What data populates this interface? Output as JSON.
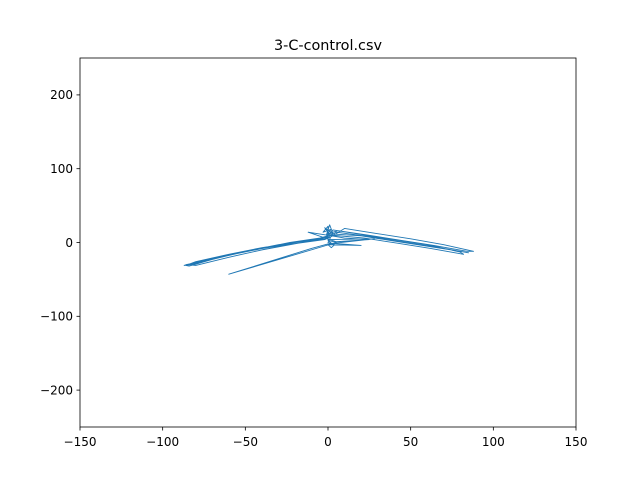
{
  "chart_data": {
    "type": "line",
    "title": "3-C-control.csv",
    "xlabel": "",
    "ylabel": "",
    "xlim": [
      -150,
      150
    ],
    "ylim": [
      -250,
      250
    ],
    "xticks": [
      -150,
      -100,
      -50,
      0,
      50,
      100,
      150
    ],
    "yticks": [
      -200,
      -100,
      0,
      100,
      200
    ],
    "xtick_labels": [
      "−150",
      "−100",
      "−50",
      "0",
      "50",
      "100",
      "150"
    ],
    "ytick_labels": [
      "−200",
      "−100",
      "0",
      "100",
      "200"
    ],
    "grid": false,
    "line_color": "#1f77b4",
    "series": [
      {
        "name": "",
        "points": [
          [
            0,
            8
          ],
          [
            -2,
            5
          ],
          [
            -20,
            0
          ],
          [
            -40,
            -7
          ],
          [
            -60,
            -16
          ],
          [
            -80,
            -26
          ],
          [
            -86,
            -31
          ],
          [
            -84,
            -32
          ],
          [
            -70,
            -23
          ],
          [
            -50,
            -12
          ],
          [
            -30,
            -3
          ],
          [
            -10,
            4
          ],
          [
            1,
            8
          ],
          [
            -3,
            6
          ],
          [
            -25,
            -2
          ],
          [
            -45,
            -10
          ],
          [
            -65,
            -19
          ],
          [
            -82,
            -29
          ],
          [
            -87,
            -31
          ],
          [
            -83,
            -30
          ],
          [
            -63,
            -19
          ],
          [
            -43,
            -9
          ],
          [
            -23,
            0
          ],
          [
            -5,
            6
          ],
          [
            0,
            9
          ],
          [
            -6,
            3
          ],
          [
            -28,
            -4
          ],
          [
            -48,
            -11
          ],
          [
            -68,
            -20
          ],
          [
            -85,
            -30
          ],
          [
            -80,
            -31
          ],
          [
            -60,
            -20
          ],
          [
            -40,
            -10
          ],
          [
            -18,
            -1
          ],
          [
            -2,
            4
          ],
          [
            1,
            7
          ],
          [
            -4,
            6
          ],
          [
            -24,
            -1
          ],
          [
            -44,
            -9
          ],
          [
            -64,
            -18
          ],
          [
            -81,
            -28
          ],
          [
            -86,
            -30
          ],
          [
            -75,
            -25
          ],
          [
            -55,
            -15
          ],
          [
            -35,
            -6
          ],
          [
            -15,
            2
          ],
          [
            0,
            8
          ],
          [
            0,
            22
          ],
          [
            -3,
            14
          ],
          [
            2,
            18
          ],
          [
            -1,
            10
          ],
          [
            1,
            24
          ],
          [
            3,
            12
          ],
          [
            -2,
            20
          ],
          [
            2,
            8
          ],
          [
            10,
            19
          ],
          [
            30,
            12
          ],
          [
            50,
            5
          ],
          [
            70,
            -3
          ],
          [
            88,
            -12
          ],
          [
            84,
            -12
          ],
          [
            64,
            -4
          ],
          [
            44,
            3
          ],
          [
            24,
            10
          ],
          [
            6,
            16
          ],
          [
            0,
            12
          ],
          [
            20,
            9
          ],
          [
            40,
            2
          ],
          [
            60,
            -5
          ],
          [
            80,
            -12
          ],
          [
            85,
            -14
          ],
          [
            65,
            -6
          ],
          [
            45,
            1
          ],
          [
            25,
            8
          ],
          [
            5,
            14
          ],
          [
            2,
            10
          ],
          [
            22,
            6
          ],
          [
            42,
            -1
          ],
          [
            62,
            -8
          ],
          [
            82,
            -16
          ],
          [
            80,
            -13
          ],
          [
            60,
            -3
          ],
          [
            40,
            4
          ],
          [
            20,
            11
          ],
          [
            3,
            17
          ],
          [
            0,
            10
          ],
          [
            10,
            6
          ],
          [
            25,
            4
          ],
          [
            5,
            1
          ],
          [
            -12,
            14
          ],
          [
            2,
            9
          ],
          [
            0,
            0
          ],
          [
            4,
            -3
          ],
          [
            2,
            -7
          ],
          [
            0,
            -3
          ],
          [
            20,
            -4
          ],
          [
            2,
            -1
          ],
          [
            0,
            3
          ],
          [
            5,
            0
          ],
          [
            -60,
            -43
          ],
          [
            -10,
            -8
          ],
          [
            0,
            -2
          ],
          [
            28,
            5
          ],
          [
            0,
            4
          ],
          [
            -1,
            8
          ]
        ]
      }
    ]
  }
}
